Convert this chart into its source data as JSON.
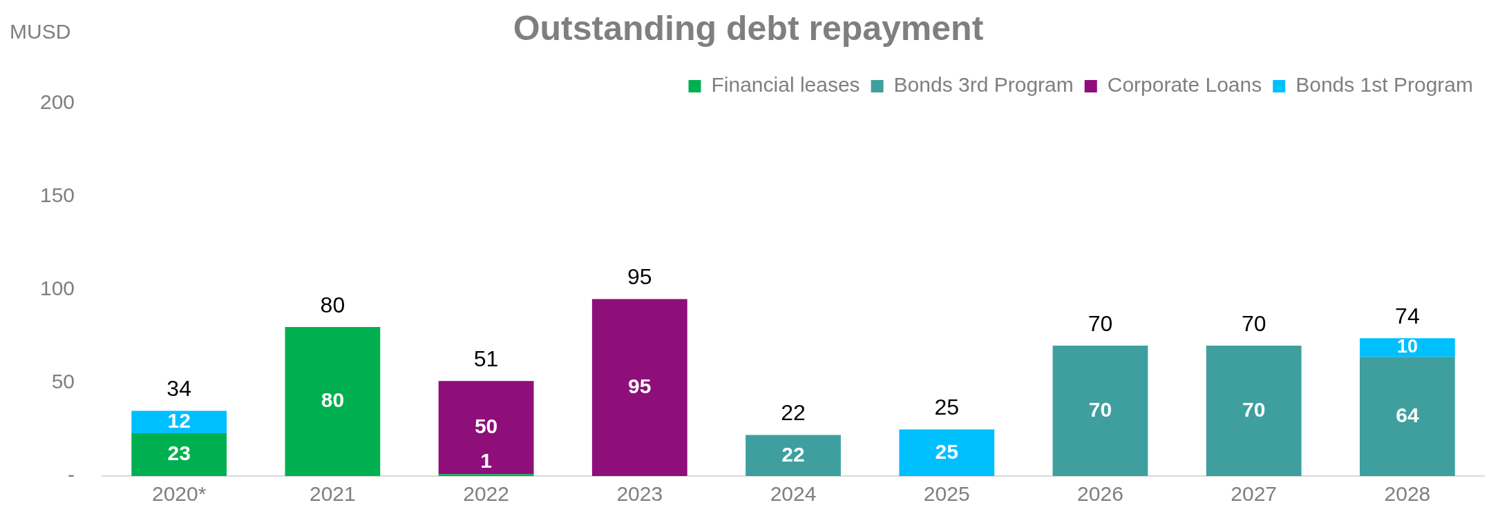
{
  "chart_data": {
    "type": "bar",
    "title": "Outstanding debt repayment",
    "ylabel": "MUSD",
    "stacked": true,
    "categories": [
      "2020*",
      "2021",
      "2022",
      "2023",
      "2024",
      "2025",
      "2026",
      "2027",
      "2028"
    ],
    "series": [
      {
        "name": "Financial leases",
        "color": "#00b050",
        "values": [
          23,
          80,
          1,
          null,
          null,
          null,
          null,
          null,
          null
        ]
      },
      {
        "name": "Bonds 3rd Program",
        "color": "#3f9f9f",
        "values": [
          null,
          null,
          null,
          null,
          22,
          null,
          70,
          70,
          64
        ]
      },
      {
        "name": "Corporate Loans",
        "color": "#8e0e7a",
        "values": [
          null,
          null,
          50,
          95,
          null,
          null,
          null,
          null,
          null
        ]
      },
      {
        "name": "Bonds 1st Program",
        "color": "#00bfff",
        "values": [
          12,
          null,
          null,
          null,
          null,
          25,
          null,
          null,
          10
        ]
      }
    ],
    "totals": [
      "34",
      "80",
      "51",
      "95",
      "22",
      "25",
      "70",
      "70",
      "74"
    ],
    "data_labels": true,
    "ylim": [
      0,
      200
    ],
    "yticks": [
      {
        "value": 0,
        "label": "-"
      },
      50,
      100,
      150,
      200
    ],
    "grid": false,
    "legend": "top right"
  }
}
